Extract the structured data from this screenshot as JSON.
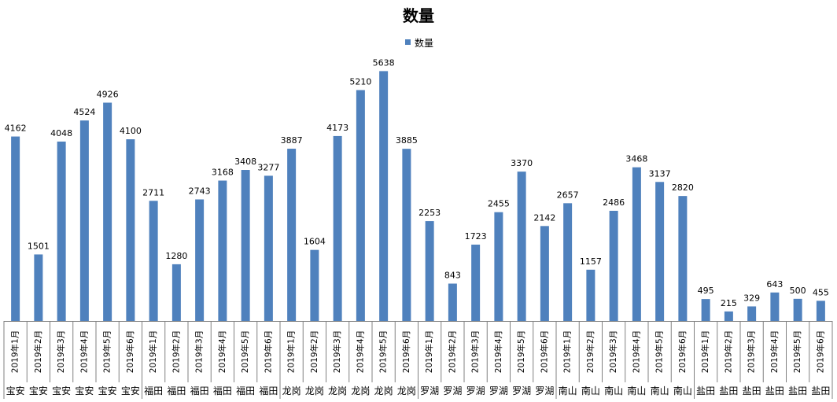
{
  "chart_data": {
    "type": "bar",
    "title": "数量",
    "legend": {
      "position": "top",
      "label": "数量"
    },
    "series": [
      {
        "name": "数量",
        "color": "#4F81BD",
        "values": [
          4162,
          1501,
          4048,
          4524,
          4926,
          4100,
          2711,
          1280,
          2743,
          3168,
          3408,
          3277,
          3887,
          1604,
          4173,
          5210,
          5638,
          3885,
          2253,
          843,
          1723,
          2455,
          3370,
          2142,
          2657,
          1157,
          2486,
          3468,
          3137,
          2820,
          495,
          215,
          329,
          643,
          500,
          455
        ]
      }
    ],
    "categories": [
      {
        "month": "2019年1月",
        "district": "宝安"
      },
      {
        "month": "2019年2月",
        "district": "宝安"
      },
      {
        "month": "2019年3月",
        "district": "宝安"
      },
      {
        "month": "2019年4月",
        "district": "宝安"
      },
      {
        "month": "2019年5月",
        "district": "宝安"
      },
      {
        "month": "2019年6月",
        "district": "宝安"
      },
      {
        "month": "2019年1月",
        "district": "福田"
      },
      {
        "month": "2019年2月",
        "district": "福田"
      },
      {
        "month": "2019年3月",
        "district": "福田"
      },
      {
        "month": "2019年4月",
        "district": "福田"
      },
      {
        "month": "2019年5月",
        "district": "福田"
      },
      {
        "month": "2019年6月",
        "district": "福田"
      },
      {
        "month": "2019年1月",
        "district": "龙岗"
      },
      {
        "month": "2019年2月",
        "district": "龙岗"
      },
      {
        "month": "2019年3月",
        "district": "龙岗"
      },
      {
        "month": "2019年4月",
        "district": "龙岗"
      },
      {
        "month": "2019年5月",
        "district": "龙岗"
      },
      {
        "month": "2019年6月",
        "district": "龙岗"
      },
      {
        "month": "2019年1月",
        "district": "罗湖"
      },
      {
        "month": "2019年2月",
        "district": "罗湖"
      },
      {
        "month": "2019年3月",
        "district": "罗湖"
      },
      {
        "month": "2019年4月",
        "district": "罗湖"
      },
      {
        "month": "2019年5月",
        "district": "罗湖"
      },
      {
        "month": "2019年6月",
        "district": "罗湖"
      },
      {
        "month": "2019年1月",
        "district": "南山"
      },
      {
        "month": "2019年2月",
        "district": "南山"
      },
      {
        "month": "2019年3月",
        "district": "南山"
      },
      {
        "month": "2019年4月",
        "district": "南山"
      },
      {
        "month": "2019年5月",
        "district": "南山"
      },
      {
        "month": "2019年6月",
        "district": "南山"
      },
      {
        "month": "2019年1月",
        "district": "盐田"
      },
      {
        "month": "2019年2月",
        "district": "盐田"
      },
      {
        "month": "2019年3月",
        "district": "盐田"
      },
      {
        "month": "2019年4月",
        "district": "盐田"
      },
      {
        "month": "2019年5月",
        "district": "盐田"
      },
      {
        "month": "2019年6月",
        "district": "盐田"
      }
    ],
    "ylim": [
      0,
      6000
    ],
    "grid": false,
    "data_labels": true
  }
}
